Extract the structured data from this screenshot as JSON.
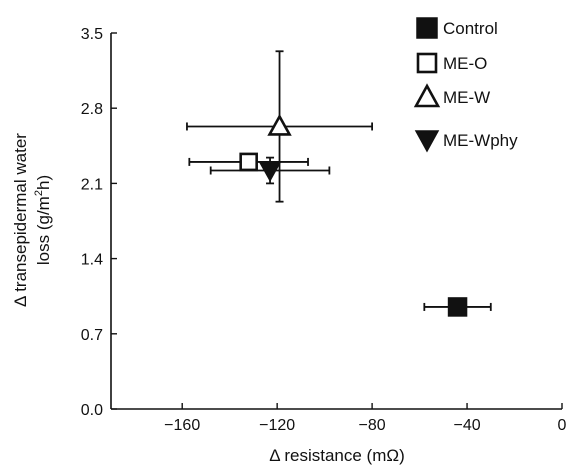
{
  "chart_data": {
    "type": "scatter",
    "xlabel": "Δ resistance (mΩ)",
    "ylabel_line1": "Δ transepidermal water",
    "ylabel_line2_pre": "loss (g/m",
    "ylabel_line2_sup": "2",
    "ylabel_line2_post": "h)",
    "xlim": [
      -190,
      0
    ],
    "ylim": [
      0.0,
      3.5
    ],
    "xticks": [
      {
        "value": -160,
        "label": "−160"
      },
      {
        "value": -120,
        "label": "−120"
      },
      {
        "value": -80,
        "label": "−80"
      },
      {
        "value": -40,
        "label": "−40"
      },
      {
        "value": 0,
        "label": "0"
      }
    ],
    "yticks": [
      {
        "value": 0.0,
        "label": "0.0"
      },
      {
        "value": 0.7,
        "label": "0.7"
      },
      {
        "value": 1.4,
        "label": "1.4"
      },
      {
        "value": 2.1,
        "label": "2.1"
      },
      {
        "value": 2.8,
        "label": "2.8"
      },
      {
        "value": 3.5,
        "label": "3.5"
      }
    ],
    "grid": false,
    "legend_position": "top-right",
    "series": [
      {
        "name": "Control",
        "marker": "filled-square",
        "x": -44,
        "y": 0.95,
        "xerr": 14,
        "yerr": 0
      },
      {
        "name": "ME-O",
        "marker": "open-square",
        "x": -132,
        "y": 2.3,
        "xerr": 25,
        "yerr": 0.06
      },
      {
        "name": "ME-W",
        "marker": "open-triangle-up",
        "x": -119,
        "y": 2.63,
        "xerr": 39,
        "yerr": 0.7
      },
      {
        "name": "ME-Wphy",
        "marker": "filled-triangle-down",
        "x": -123,
        "y": 2.22,
        "xerr": 25,
        "yerr": 0.12
      }
    ]
  }
}
